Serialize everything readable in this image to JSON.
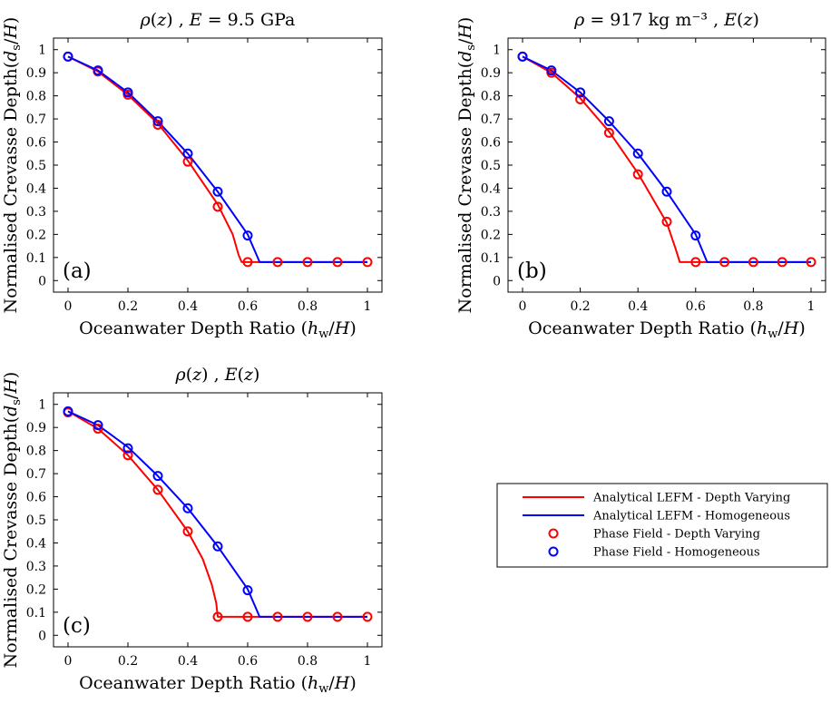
{
  "chart_data": [
    {
      "type": "line",
      "panel_label": "(a)",
      "title": "ρ(z) , E = 9.5 GPa",
      "xlabel": "Oceanwater Depth Ratio (h_w/H)",
      "ylabel": "Normalised Crevasse Depth(d_s/H)",
      "xlim": [
        0,
        1
      ],
      "ylim": [
        -0.05,
        1.05
      ],
      "xticks": [
        0,
        0.2,
        0.4,
        0.6,
        0.8,
        1
      ],
      "xticklabels": [
        "0",
        "0.2",
        "0.4",
        "0.6",
        "0.8",
        "1"
      ],
      "yticks": [
        0,
        0.1,
        0.2,
        0.3,
        0.4,
        0.5,
        0.6,
        0.7,
        0.8,
        0.9,
        1
      ],
      "yticklabels": [
        "0",
        "0.1",
        "0.2",
        "0.3",
        "0.4",
        "0.5",
        "0.6",
        "0.7",
        "0.8",
        "0.9",
        "1"
      ],
      "grid": false,
      "series": [
        {
          "name": "Analytical LEFM - Depth Varying",
          "kind": "line",
          "color": "#ff0000",
          "x": [
            0,
            0.1,
            0.2,
            0.3,
            0.4,
            0.5,
            0.55,
            0.57,
            0.58,
            0.7,
            0.8,
            0.9,
            1
          ],
          "y": [
            0.97,
            0.905,
            0.805,
            0.68,
            0.52,
            0.33,
            0.2,
            0.11,
            0.08,
            0.08,
            0.08,
            0.08,
            0.08
          ]
        },
        {
          "name": "Analytical LEFM - Homogeneous",
          "kind": "line",
          "color": "#0000ff",
          "x": [
            0,
            0.1,
            0.2,
            0.3,
            0.4,
            0.5,
            0.6,
            0.63,
            0.64,
            0.7,
            0.8,
            0.9,
            1
          ],
          "y": [
            0.97,
            0.91,
            0.815,
            0.69,
            0.55,
            0.385,
            0.2,
            0.11,
            0.08,
            0.08,
            0.08,
            0.08,
            0.08
          ]
        },
        {
          "name": "Phase Field - Depth Varying",
          "kind": "scatter",
          "color": "#ff0000",
          "x": [
            0,
            0.1,
            0.2,
            0.3,
            0.4,
            0.5,
            0.6,
            0.7,
            0.8,
            0.9,
            1
          ],
          "y": [
            0.97,
            0.905,
            0.805,
            0.675,
            0.515,
            0.32,
            0.08,
            0.08,
            0.08,
            0.08,
            0.08
          ]
        },
        {
          "name": "Phase Field - Homogeneous",
          "kind": "scatter",
          "color": "#0000ff",
          "x": [
            0,
            0.1,
            0.2,
            0.3,
            0.4,
            0.5,
            0.6
          ],
          "y": [
            0.97,
            0.91,
            0.815,
            0.69,
            0.55,
            0.385,
            0.195
          ]
        }
      ]
    },
    {
      "type": "line",
      "panel_label": "(b)",
      "title": "ρ = 917 kg m⁻³ , E(z)",
      "xlabel": "Oceanwater Depth Ratio (h_w/H)",
      "ylabel": "Normalised Crevasse Depth(d_s/H)",
      "xlim": [
        0,
        1
      ],
      "ylim": [
        -0.05,
        1.05
      ],
      "xticks": [
        0,
        0.2,
        0.4,
        0.6,
        0.8,
        1
      ],
      "xticklabels": [
        "0",
        "0.2",
        "0.4",
        "0.6",
        "0.8",
        "1"
      ],
      "yticks": [
        0,
        0.1,
        0.2,
        0.3,
        0.4,
        0.5,
        0.6,
        0.7,
        0.8,
        0.9,
        1
      ],
      "yticklabels": [
        "0",
        "0.1",
        "0.2",
        "0.3",
        "0.4",
        "0.5",
        "0.6",
        "0.7",
        "0.8",
        "0.9",
        "1"
      ],
      "grid": false,
      "series": [
        {
          "name": "Analytical LEFM - Depth Varying",
          "kind": "line",
          "color": "#ff0000",
          "x": [
            0,
            0.1,
            0.2,
            0.3,
            0.4,
            0.5,
            0.53,
            0.545,
            0.7,
            0.8,
            0.9,
            1
          ],
          "y": [
            0.97,
            0.9,
            0.79,
            0.645,
            0.465,
            0.25,
            0.14,
            0.08,
            0.08,
            0.08,
            0.08,
            0.08
          ]
        },
        {
          "name": "Analytical LEFM - Homogeneous",
          "kind": "line",
          "color": "#0000ff",
          "x": [
            0,
            0.1,
            0.2,
            0.3,
            0.4,
            0.5,
            0.6,
            0.63,
            0.64,
            0.7,
            0.8,
            0.9,
            1
          ],
          "y": [
            0.97,
            0.91,
            0.815,
            0.69,
            0.55,
            0.385,
            0.2,
            0.11,
            0.08,
            0.08,
            0.08,
            0.08,
            0.08
          ]
        },
        {
          "name": "Phase Field - Depth Varying",
          "kind": "scatter",
          "color": "#ff0000",
          "x": [
            0,
            0.1,
            0.2,
            0.3,
            0.4,
            0.5,
            0.6,
            0.7,
            0.8,
            0.9,
            1
          ],
          "y": [
            0.97,
            0.9,
            0.785,
            0.64,
            0.46,
            0.255,
            0.08,
            0.08,
            0.08,
            0.08,
            0.08
          ]
        },
        {
          "name": "Phase Field - Homogeneous",
          "kind": "scatter",
          "color": "#0000ff",
          "x": [
            0,
            0.1,
            0.2,
            0.3,
            0.4,
            0.5,
            0.6
          ],
          "y": [
            0.97,
            0.91,
            0.815,
            0.69,
            0.55,
            0.385,
            0.195
          ]
        }
      ]
    },
    {
      "type": "line",
      "panel_label": "(c)",
      "title": "ρ(z) , E(z)",
      "xlabel": "Oceanwater Depth Ratio (h_w/H)",
      "ylabel": "Normalised Crevasse Depth(d_s/H)",
      "xlim": [
        0,
        1
      ],
      "ylim": [
        -0.05,
        1.05
      ],
      "xticks": [
        0,
        0.2,
        0.4,
        0.6,
        0.8,
        1
      ],
      "xticklabels": [
        "0",
        "0.2",
        "0.4",
        "0.6",
        "0.8",
        "1"
      ],
      "yticks": [
        0,
        0.1,
        0.2,
        0.3,
        0.4,
        0.5,
        0.6,
        0.7,
        0.8,
        0.9,
        1
      ],
      "yticklabels": [
        "0",
        "0.1",
        "0.2",
        "0.3",
        "0.4",
        "0.5",
        "0.6",
        "0.7",
        "0.8",
        "0.9",
        "1"
      ],
      "grid": false,
      "series": [
        {
          "name": "Analytical LEFM - Depth Varying",
          "kind": "line",
          "color": "#ff0000",
          "x": [
            0,
            0.1,
            0.2,
            0.3,
            0.4,
            0.45,
            0.48,
            0.495,
            0.5,
            0.6,
            0.7,
            0.8,
            0.9,
            1
          ],
          "y": [
            0.97,
            0.895,
            0.78,
            0.63,
            0.45,
            0.33,
            0.22,
            0.14,
            0.08,
            0.08,
            0.08,
            0.08,
            0.08,
            0.08
          ]
        },
        {
          "name": "Analytical LEFM - Homogeneous",
          "kind": "line",
          "color": "#0000ff",
          "x": [
            0,
            0.1,
            0.2,
            0.3,
            0.4,
            0.5,
            0.6,
            0.63,
            0.64,
            0.7,
            0.8,
            0.9,
            1
          ],
          "y": [
            0.97,
            0.91,
            0.815,
            0.69,
            0.55,
            0.385,
            0.2,
            0.11,
            0.08,
            0.08,
            0.08,
            0.08,
            0.08
          ]
        },
        {
          "name": "Phase Field - Depth Varying",
          "kind": "scatter",
          "color": "#ff0000",
          "x": [
            0,
            0.1,
            0.2,
            0.3,
            0.4,
            0.5,
            0.6,
            0.7,
            0.8,
            0.9,
            1
          ],
          "y": [
            0.965,
            0.895,
            0.78,
            0.63,
            0.45,
            0.08,
            0.08,
            0.08,
            0.08,
            0.08,
            0.08
          ]
        },
        {
          "name": "Phase Field - Homogeneous",
          "kind": "scatter",
          "color": "#0000ff",
          "x": [
            0,
            0.1,
            0.2,
            0.3,
            0.4,
            0.5,
            0.6
          ],
          "y": [
            0.97,
            0.91,
            0.81,
            0.69,
            0.55,
            0.385,
            0.195
          ]
        }
      ]
    }
  ],
  "legend": {
    "placement": "right of panel (c)",
    "entries": [
      {
        "label": "Analytical LEFM - Depth Varying",
        "marker": "line",
        "color": "#ff0000"
      },
      {
        "label": "Analytical LEFM - Homogeneous",
        "marker": "line",
        "color": "#0000ff"
      },
      {
        "label": "Phase Field - Depth Varying",
        "marker": "circle",
        "color": "#ff0000"
      },
      {
        "label": "Phase Field - Homogeneous",
        "marker": "circle",
        "color": "#0000ff"
      }
    ]
  }
}
